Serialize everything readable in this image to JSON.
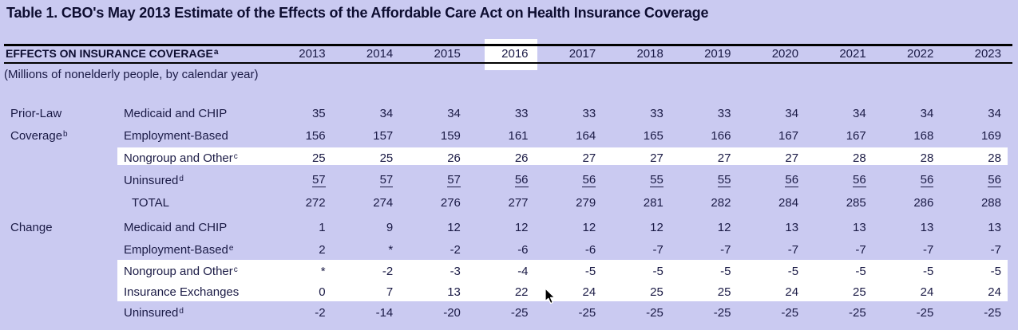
{
  "title": "Table 1. CBO's May 2013 Estimate of the Effects of the Affordable Care Act on Health Insurance Coverage",
  "header": {
    "label": "EFFECTS ON INSURANCE COVERAGE",
    "label_sup": "a",
    "subtitle": "(Millions of nonelderly people, by calendar year)",
    "years": [
      "2013",
      "2014",
      "2015",
      "2016",
      "2017",
      "2018",
      "2019",
      "2020",
      "2021",
      "2022",
      "2023"
    ],
    "highlighted_year": "2016"
  },
  "chart_data": {
    "type": "table",
    "title": "Table 1. CBO's May 2013 Estimate of the Effects of the Affordable Care Act on Health Insurance Coverage",
    "columns": [
      "2013",
      "2014",
      "2015",
      "2016",
      "2017",
      "2018",
      "2019",
      "2020",
      "2021",
      "2022",
      "2023"
    ],
    "units": "Millions of nonelderly people, by calendar year"
  },
  "sections": [
    {
      "id": "prior-law",
      "group_label_lines": [
        {
          "text": "Prior-Law",
          "sup": ""
        },
        {
          "text": "Coverage",
          "sup": "b"
        }
      ],
      "rows": [
        {
          "label": "Medicaid and CHIP",
          "sup": "",
          "indent": false,
          "underline": false,
          "highlight": false,
          "values": [
            "35",
            "34",
            "34",
            "33",
            "33",
            "33",
            "33",
            "34",
            "34",
            "34",
            "34"
          ]
        },
        {
          "label": "Employment-Based",
          "sup": "",
          "indent": false,
          "underline": false,
          "highlight": false,
          "values": [
            "156",
            "157",
            "159",
            "161",
            "164",
            "165",
            "166",
            "167",
            "167",
            "168",
            "169"
          ]
        },
        {
          "label": "Nongroup and Other",
          "sup": "c",
          "indent": false,
          "underline": false,
          "highlight": true,
          "values": [
            "25",
            "25",
            "26",
            "26",
            "27",
            "27",
            "27",
            "27",
            "28",
            "28",
            "28"
          ]
        },
        {
          "label": "Uninsured",
          "sup": "d",
          "indent": false,
          "underline": true,
          "highlight": false,
          "values": [
            "57",
            "57",
            "57",
            "56",
            "56",
            "55",
            "55",
            "56",
            "56",
            "56",
            "56"
          ]
        },
        {
          "label": "TOTAL",
          "sup": "",
          "indent": true,
          "underline": false,
          "highlight": false,
          "values": [
            "272",
            "274",
            "276",
            "277",
            "279",
            "281",
            "282",
            "284",
            "285",
            "286",
            "288"
          ]
        }
      ]
    },
    {
      "id": "change",
      "group_label_lines": [
        {
          "text": "Change",
          "sup": ""
        }
      ],
      "rows": [
        {
          "label": "Medicaid and CHIP",
          "sup": "",
          "indent": false,
          "underline": false,
          "highlight": false,
          "values": [
            "1",
            "9",
            "12",
            "12",
            "12",
            "12",
            "12",
            "13",
            "13",
            "13",
            "13"
          ]
        },
        {
          "label": "Employment-Based",
          "sup": "e",
          "indent": false,
          "underline": false,
          "highlight": false,
          "values": [
            "2",
            "*",
            "-2",
            "-6",
            "-6",
            "-7",
            "-7",
            "-7",
            "-7",
            "-7",
            "-7"
          ]
        },
        {
          "label": "Nongroup and Other",
          "sup": "c",
          "indent": false,
          "underline": false,
          "highlight": true,
          "values": [
            "*",
            "-2",
            "-3",
            "-4",
            "-5",
            "-5",
            "-5",
            "-5",
            "-5",
            "-5",
            "-5"
          ]
        },
        {
          "label": "Insurance Exchanges",
          "sup": "",
          "indent": false,
          "underline": false,
          "highlight": true,
          "values": [
            "0",
            "7",
            "13",
            "22",
            "24",
            "25",
            "25",
            "24",
            "25",
            "24",
            "24"
          ]
        },
        {
          "label": "Uninsured",
          "sup": "d",
          "indent": false,
          "underline": false,
          "highlight": false,
          "values": [
            "-2",
            "-14",
            "-20",
            "-25",
            "-25",
            "-25",
            "-25",
            "-25",
            "-25",
            "-25",
            "-25"
          ]
        }
      ]
    }
  ],
  "colors": {
    "background": "#cacaf1",
    "highlight_band": "#ffffff",
    "text": "#1a1a45",
    "title_text": "#0d0d30",
    "rule": "#000000"
  }
}
